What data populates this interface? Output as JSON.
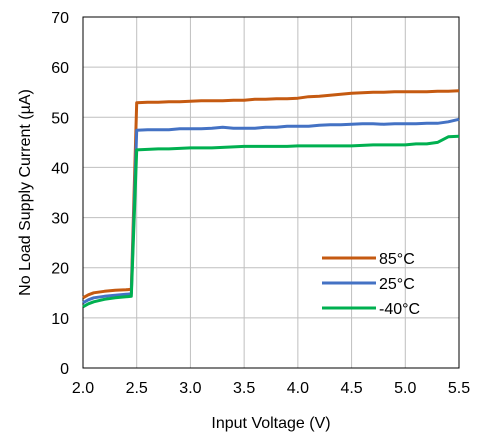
{
  "chart_data": {
    "type": "line",
    "title": "",
    "xlabel": "Input Voltage (V)",
    "ylabel": "No Load Supply Current (µA)",
    "xlim": [
      2.0,
      5.5
    ],
    "ylim": [
      0,
      70
    ],
    "x_ticks": [
      "2.0",
      "2.5",
      "3.0",
      "3.5",
      "4.0",
      "4.5",
      "5.0",
      "5.5"
    ],
    "y_ticks": [
      "0",
      "10",
      "20",
      "30",
      "40",
      "50",
      "60",
      "70"
    ],
    "grid": true,
    "legend_position": "bottom-right",
    "series": [
      {
        "name": "85°C",
        "color": "#C55A11",
        "x": [
          2.0,
          2.05,
          2.1,
          2.2,
          2.3,
          2.4,
          2.45,
          2.5,
          2.6,
          2.7,
          2.8,
          2.9,
          3.0,
          3.1,
          3.2,
          3.3,
          3.4,
          3.5,
          3.6,
          3.7,
          3.8,
          3.9,
          4.0,
          4.1,
          4.2,
          4.3,
          4.4,
          4.5,
          4.6,
          4.7,
          4.8,
          4.9,
          5.0,
          5.1,
          5.2,
          5.3,
          5.4,
          5.5
        ],
        "values": [
          14.0,
          14.6,
          15.0,
          15.3,
          15.5,
          15.6,
          15.7,
          52.9,
          53.0,
          53.0,
          53.1,
          53.1,
          53.2,
          53.3,
          53.3,
          53.3,
          53.4,
          53.4,
          53.6,
          53.6,
          53.7,
          53.7,
          53.8,
          54.1,
          54.2,
          54.4,
          54.6,
          54.8,
          54.9,
          55.0,
          55.0,
          55.1,
          55.1,
          55.1,
          55.1,
          55.2,
          55.2,
          55.3
        ]
      },
      {
        "name": "25°C",
        "color": "#4472C4",
        "x": [
          2.0,
          2.05,
          2.1,
          2.2,
          2.3,
          2.4,
          2.45,
          2.5,
          2.6,
          2.7,
          2.8,
          2.9,
          3.0,
          3.1,
          3.2,
          3.3,
          3.4,
          3.5,
          3.6,
          3.7,
          3.8,
          3.9,
          4.0,
          4.1,
          4.2,
          4.3,
          4.4,
          4.5,
          4.6,
          4.7,
          4.8,
          4.9,
          5.0,
          5.1,
          5.2,
          5.3,
          5.4,
          5.5
        ],
        "values": [
          13.0,
          13.6,
          14.0,
          14.3,
          14.5,
          14.7,
          14.8,
          47.4,
          47.5,
          47.5,
          47.5,
          47.7,
          47.7,
          47.7,
          47.8,
          48.0,
          47.8,
          47.8,
          47.8,
          48.0,
          48.0,
          48.2,
          48.2,
          48.2,
          48.4,
          48.5,
          48.5,
          48.6,
          48.7,
          48.7,
          48.6,
          48.7,
          48.7,
          48.7,
          48.8,
          48.8,
          49.1,
          49.6
        ]
      },
      {
        "name": "-40°C",
        "color": "#00B050",
        "x": [
          2.0,
          2.05,
          2.1,
          2.2,
          2.3,
          2.4,
          2.45,
          2.5,
          2.6,
          2.7,
          2.8,
          2.9,
          3.0,
          3.1,
          3.2,
          3.3,
          3.4,
          3.5,
          3.6,
          3.7,
          3.8,
          3.9,
          4.0,
          4.1,
          4.2,
          4.3,
          4.4,
          4.5,
          4.6,
          4.7,
          4.8,
          4.9,
          5.0,
          5.1,
          5.2,
          5.3,
          5.4,
          5.5
        ],
        "values": [
          12.2,
          12.8,
          13.2,
          13.7,
          14.0,
          14.2,
          14.3,
          43.5,
          43.6,
          43.7,
          43.7,
          43.8,
          43.9,
          43.9,
          43.9,
          44.0,
          44.1,
          44.2,
          44.2,
          44.2,
          44.2,
          44.2,
          44.3,
          44.3,
          44.3,
          44.3,
          44.3,
          44.3,
          44.4,
          44.5,
          44.5,
          44.5,
          44.5,
          44.7,
          44.7,
          45.0,
          46.1,
          46.2
        ]
      }
    ]
  }
}
